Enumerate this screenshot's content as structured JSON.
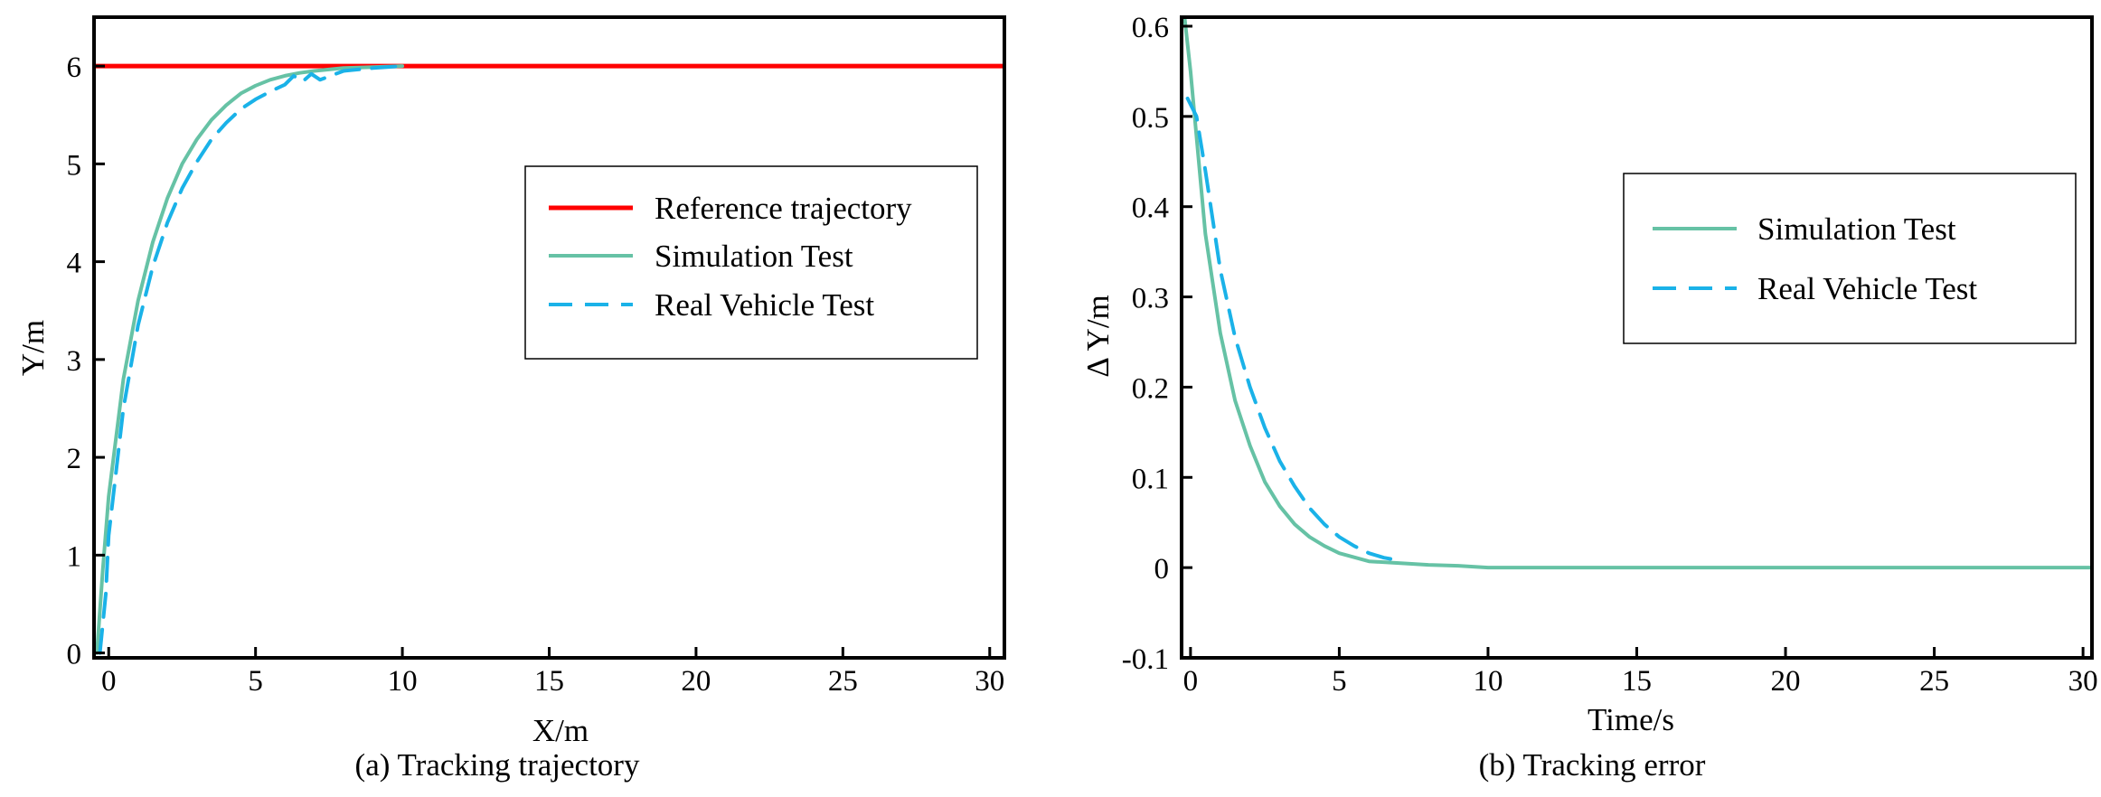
{
  "chart_data": [
    {
      "id": "a",
      "type": "line",
      "caption": "(a) Tracking trajectory",
      "xlabel": "X/m",
      "ylabel": "Y/m",
      "xlim": [
        -0.5,
        30.5
      ],
      "ylim": [
        -0.05,
        6.5
      ],
      "xticks": [
        0,
        5,
        10,
        15,
        20,
        25,
        30
      ],
      "yticks": [
        0,
        1,
        2,
        3,
        4,
        5,
        6
      ],
      "legend_position": "center-right",
      "series": [
        {
          "name": "Reference trajectory",
          "style": "solid",
          "color": "#ff0000",
          "x": [
            -0.5,
            30.5
          ],
          "y": [
            6,
            6
          ]
        },
        {
          "name": "Simulation Test",
          "style": "solid",
          "color": "#66c2a5",
          "x": [
            -0.4,
            -0.2,
            0,
            0.5,
            1,
            1.5,
            2,
            2.5,
            3,
            3.5,
            4,
            4.5,
            5,
            5.5,
            6,
            6.5,
            7,
            8,
            9,
            10
          ],
          "y": [
            0,
            0.85,
            1.6,
            2.8,
            3.6,
            4.2,
            4.65,
            5.0,
            5.25,
            5.45,
            5.6,
            5.72,
            5.8,
            5.86,
            5.9,
            5.93,
            5.95,
            5.98,
            5.99,
            6.0
          ]
        },
        {
          "name": "Real Vehicle Test",
          "style": "dashed",
          "color": "#1ab2e8",
          "x": [
            -0.3,
            -0.1,
            0,
            0.5,
            1,
            1.5,
            2,
            2.5,
            3,
            3.5,
            4,
            4.5,
            5,
            5.5,
            6,
            6.3,
            6.6,
            6.9,
            7.2,
            8,
            9,
            10
          ],
          "y": [
            0,
            0.6,
            1.2,
            2.5,
            3.35,
            3.95,
            4.4,
            4.75,
            5.02,
            5.25,
            5.42,
            5.56,
            5.66,
            5.74,
            5.81,
            5.9,
            5.84,
            5.92,
            5.86,
            5.95,
            5.98,
            6.0
          ]
        }
      ]
    },
    {
      "id": "b",
      "type": "line",
      "caption": "(b) Tracking error",
      "xlabel": "Time/s",
      "ylabel": "Δ Y/m",
      "xlim": [
        -0.3,
        30.3
      ],
      "ylim": [
        -0.1,
        0.61
      ],
      "xticks": [
        0,
        5,
        10,
        15,
        20,
        25,
        30
      ],
      "ytick_labels": [
        "-0.1",
        "0",
        "0.1",
        "0.2",
        "0.3",
        "0.4",
        "0.5",
        "0.6"
      ],
      "yticks": [
        -0.1,
        0,
        0.1,
        0.2,
        0.3,
        0.4,
        0.5,
        0.6
      ],
      "legend_position": "top-right",
      "series": [
        {
          "name": "Simulation Test",
          "style": "solid",
          "color": "#66c2a5",
          "x": [
            -0.2,
            0,
            0.5,
            1,
            1.5,
            2,
            2.5,
            3,
            3.5,
            4,
            4.5,
            5,
            6,
            7,
            8,
            9,
            10,
            12,
            15,
            20,
            25,
            30.3
          ],
          "y": [
            0.61,
            0.55,
            0.37,
            0.26,
            0.185,
            0.135,
            0.095,
            0.068,
            0.048,
            0.034,
            0.024,
            0.016,
            0.007,
            0.005,
            0.003,
            0.002,
            0.0,
            0.0,
            0.0,
            0.0,
            0.0,
            0.0
          ]
        },
        {
          "name": "Real Vehicle Test",
          "style": "dashed",
          "color": "#1ab2e8",
          "x": [
            -0.1,
            0.2,
            0.5,
            1,
            1.5,
            2,
            2.5,
            3,
            3.5,
            4,
            4.5,
            5,
            5.5,
            6,
            6.5,
            7
          ],
          "y": [
            0.52,
            0.5,
            0.44,
            0.33,
            0.255,
            0.2,
            0.155,
            0.118,
            0.09,
            0.066,
            0.048,
            0.034,
            0.024,
            0.016,
            0.011,
            0.008
          ]
        }
      ]
    }
  ]
}
